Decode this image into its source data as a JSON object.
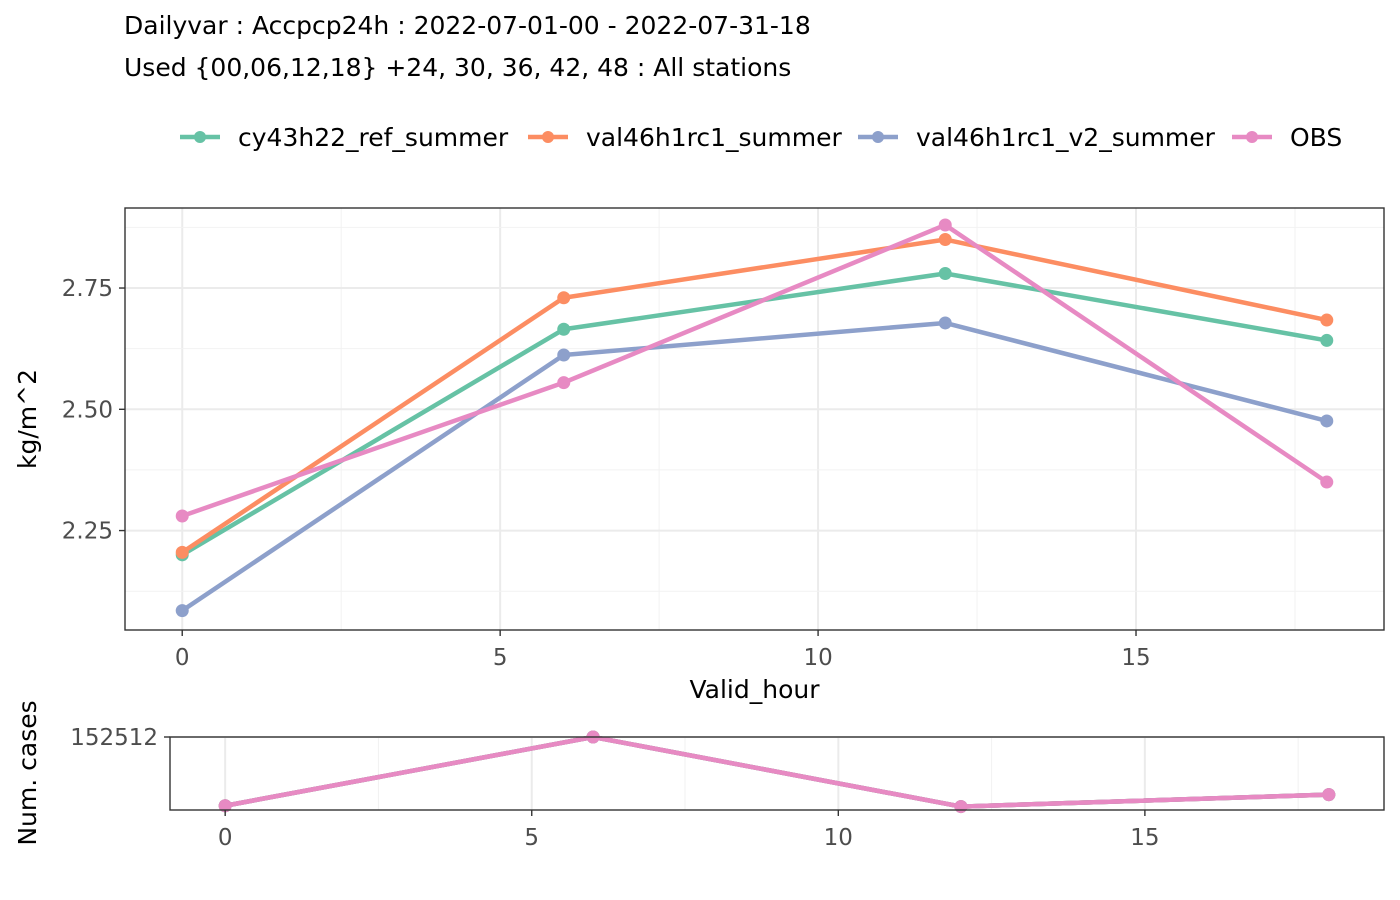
{
  "header": {
    "title": "Dailyvar : Accpcp24h : 2022-07-01-00 - 2022-07-31-18",
    "subtitle": "Used {00,06,12,18} +24, 30, 36, 42, 48 : All stations"
  },
  "chart_data": [
    {
      "type": "line",
      "name": "main",
      "x": [
        0,
        6,
        12,
        18
      ],
      "series": [
        {
          "name": "cy43h22_ref_summer",
          "color": "#66C2A5",
          "values": [
            2.2,
            2.665,
            2.78,
            2.642
          ]
        },
        {
          "name": "val46h1rc1_summer",
          "color": "#FC8D62",
          "values": [
            2.205,
            2.73,
            2.85,
            2.684
          ]
        },
        {
          "name": "val46h1rc1_v2_summer",
          "color": "#8DA0CB",
          "values": [
            2.085,
            2.612,
            2.678,
            2.476
          ]
        },
        {
          "name": "OBS",
          "color": "#E78AC3",
          "values": [
            2.28,
            2.555,
            2.88,
            2.35
          ]
        }
      ],
      "xlabel": "Valid_hour",
      "ylabel": "kg/m^2",
      "xlim": [
        -0.9,
        18.9
      ],
      "ylim": [
        2.045,
        2.915
      ],
      "xticks": [
        0,
        5,
        10,
        15
      ],
      "xtick_labels": [
        "0",
        "5",
        "10",
        "15"
      ],
      "yticks": [
        2.25,
        2.5,
        2.75
      ],
      "ytick_labels": [
        "2.25",
        "2.50",
        "2.75"
      ],
      "legend_position": "top",
      "grid": true
    },
    {
      "type": "line",
      "name": "cases",
      "x": [
        0,
        6,
        12,
        18
      ],
      "series": [
        {
          "name": "cy43h22_ref_summer",
          "color": "#66C2A5",
          "values": [
            152110,
            152512,
            152105,
            152175
          ]
        },
        {
          "name": "val46h1rc1_summer",
          "color": "#FC8D62",
          "values": [
            152110,
            152512,
            152105,
            152175
          ]
        },
        {
          "name": "val46h1rc1_v2_summer",
          "color": "#8DA0CB",
          "values": [
            152110,
            152512,
            152105,
            152175
          ]
        },
        {
          "name": "OBS",
          "color": "#E78AC3",
          "values": [
            152110,
            152512,
            152105,
            152175
          ]
        }
      ],
      "xlabel": "",
      "ylabel": "Num. cases",
      "xlim": [
        -0.9,
        18.9
      ],
      "ylim": [
        152085,
        152512
      ],
      "xticks": [
        0,
        5,
        10,
        15
      ],
      "xtick_labels": [
        "0",
        "5",
        "10",
        "15"
      ],
      "yticks": [
        152512
      ],
      "ytick_labels": [
        "152512"
      ],
      "grid": true
    }
  ]
}
